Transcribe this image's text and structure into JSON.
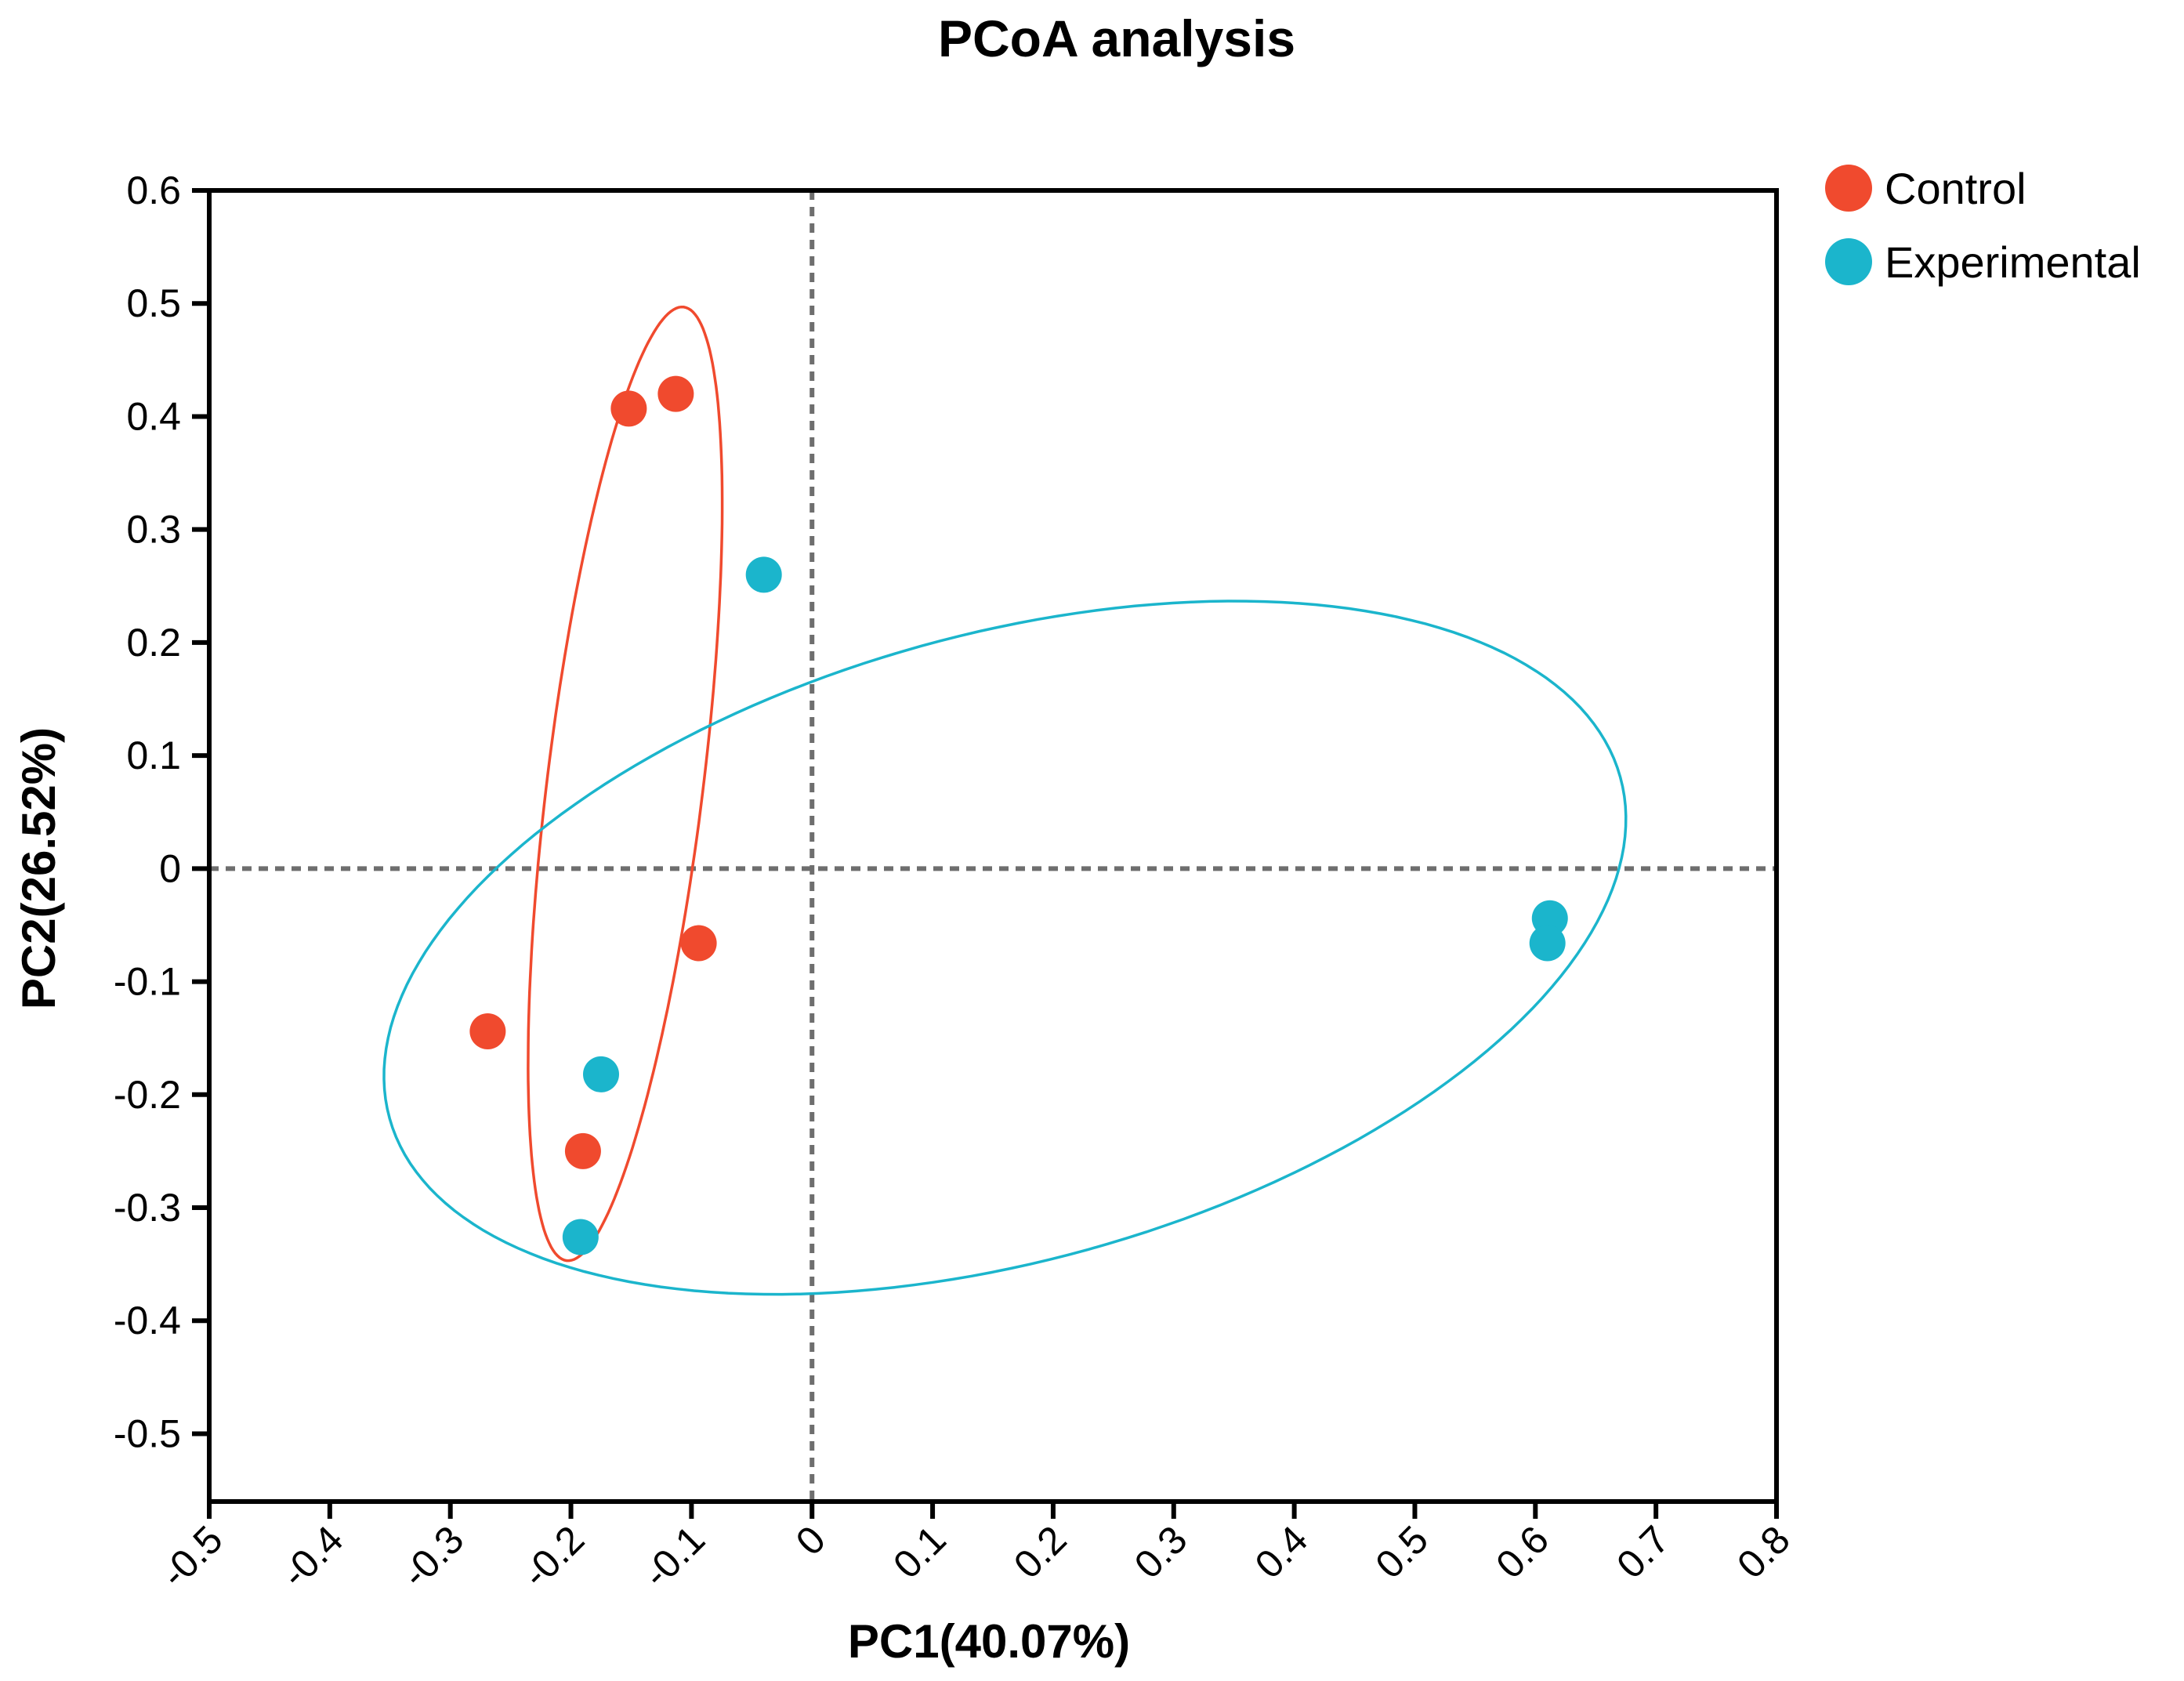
{
  "chart_data": {
    "type": "scatter",
    "title": "PCoA analysis",
    "xlabel": "PC1(40.07%)",
    "ylabel": "PC2(26.52%)",
    "xlim": [
      -0.5,
      0.8
    ],
    "ylim": [
      -0.56,
      0.6
    ],
    "xticks": [
      -0.5,
      -0.4,
      -0.3,
      -0.2,
      -0.1,
      0,
      0.1,
      0.2,
      0.3,
      0.4,
      0.5,
      0.6,
      0.7,
      0.8
    ],
    "xtick_labels": [
      "-0.5",
      "-0.4",
      "-0.3",
      "-0.2",
      "-0.1",
      "0",
      "0.1",
      "0.2",
      "0.3",
      "0.4",
      "0.5",
      "0.6",
      "0.7",
      "0.8"
    ],
    "yticks": [
      0.6,
      0.5,
      0.4,
      0.3,
      0.2,
      0.1,
      0,
      -0.1,
      -0.2,
      -0.3,
      -0.4,
      -0.5
    ],
    "ytick_labels": [
      "0.6",
      "0.5",
      "0.4",
      "0.3",
      "0.2",
      "0.1",
      "0",
      "-0.1",
      "-0.2",
      "-0.3",
      "-0.4",
      "-0.5"
    ],
    "reference_lines": [
      {
        "axis": "x",
        "value": 0
      },
      {
        "axis": "y",
        "value": 0
      }
    ],
    "grid": false,
    "legend_position": "top-right, outside plot",
    "series": [
      {
        "name": "Control",
        "color": "#F04A2E",
        "points": [
          {
            "x": -0.152,
            "y": 0.407
          },
          {
            "x": -0.113,
            "y": 0.42
          },
          {
            "x": -0.094,
            "y": -0.066
          },
          {
            "x": -0.269,
            "y": -0.144
          },
          {
            "x": -0.19,
            "y": -0.25
          }
        ],
        "ellipse": {
          "cx": -0.155,
          "cy": 0.075,
          "rx": 0.425,
          "ry": 0.069,
          "rotation_deg": 83.0
        }
      },
      {
        "name": "Experimental",
        "color": "#1BB5CC",
        "points": [
          {
            "x": -0.04,
            "y": 0.26
          },
          {
            "x": 0.612,
            "y": -0.044
          },
          {
            "x": 0.61,
            "y": -0.066
          },
          {
            "x": -0.175,
            "y": -0.182
          },
          {
            "x": -0.192,
            "y": -0.326
          }
        ],
        "ellipse": {
          "cx": 0.16,
          "cy": -0.07,
          "rx": 0.565,
          "ry": 0.277,
          "rotation_deg": 15.5
        }
      }
    ]
  }
}
